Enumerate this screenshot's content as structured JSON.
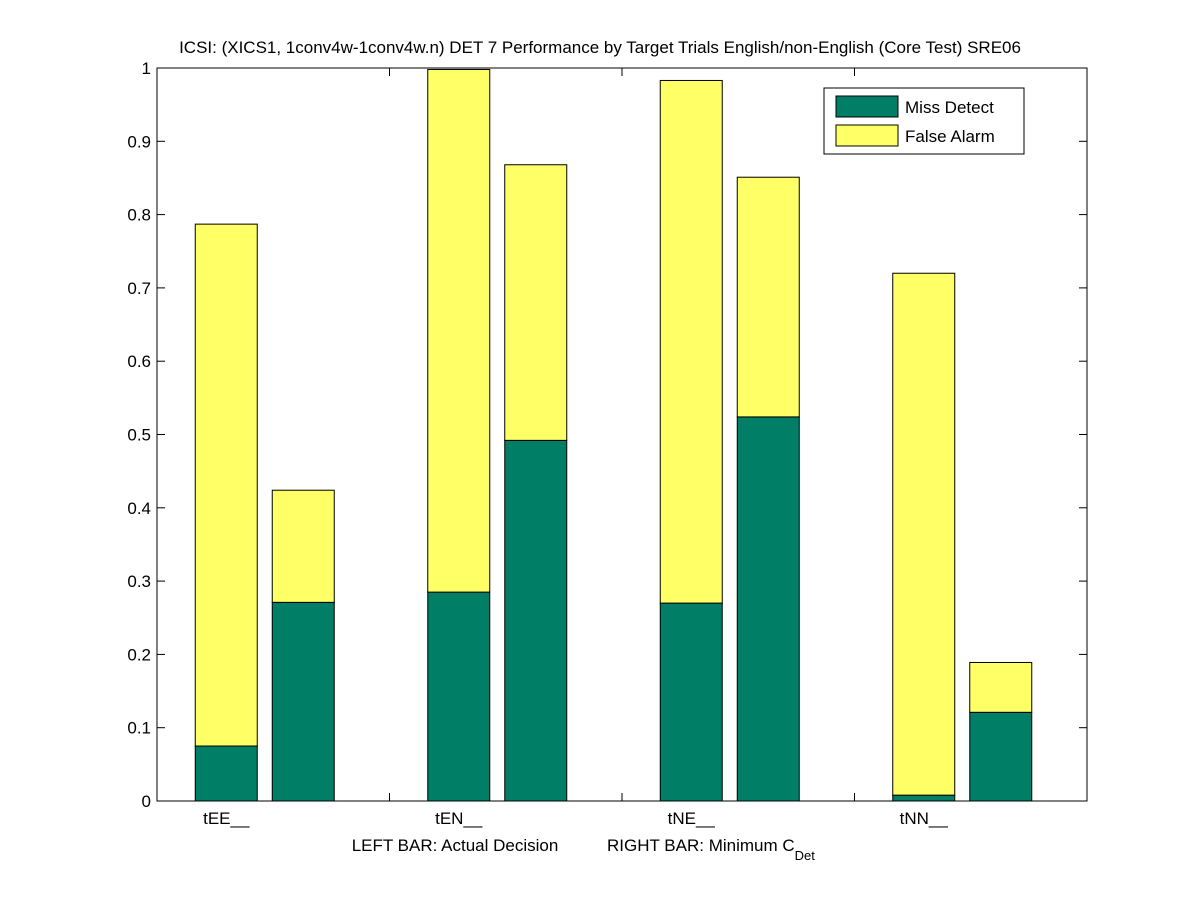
{
  "chart_data": {
    "type": "bar",
    "stacked": true,
    "title": "ICSI: (XICS1, 1conv4w-1conv4w.n) DET 7 Performance by Target Trials English/non-English (Core Test) SRE06",
    "xlabel": {
      "left": "LEFT BAR: Actual Decision",
      "right_prefix": "RIGHT BAR: Minimum C",
      "right_subscript": "Det"
    },
    "ylabel": "",
    "ylim": [
      0,
      1
    ],
    "yticks": [
      "0",
      "0.1",
      "0.2",
      "0.3",
      "0.4",
      "0.5",
      "0.6",
      "0.7",
      "0.8",
      "0.9",
      "1"
    ],
    "categories": [
      "tEE__",
      "tEN__",
      "tNE__",
      "tNN__"
    ],
    "bars_per_category": [
      "Actual Decision",
      "Minimum C_Det"
    ],
    "series": [
      {
        "name": "Miss Detect",
        "color": "#007f66",
        "values": [
          [
            0.075,
            0.271
          ],
          [
            0.285,
            0.492
          ],
          [
            0.27,
            0.524
          ],
          [
            0.008,
            0.121
          ]
        ]
      },
      {
        "name": "False Alarm",
        "color": "#ffff66",
        "values": [
          [
            0.712,
            0.153
          ],
          [
            0.713,
            0.376
          ],
          [
            0.713,
            0.327
          ],
          [
            0.712,
            0.068
          ]
        ]
      }
    ],
    "legend_position": "top-right",
    "grid": false
  }
}
